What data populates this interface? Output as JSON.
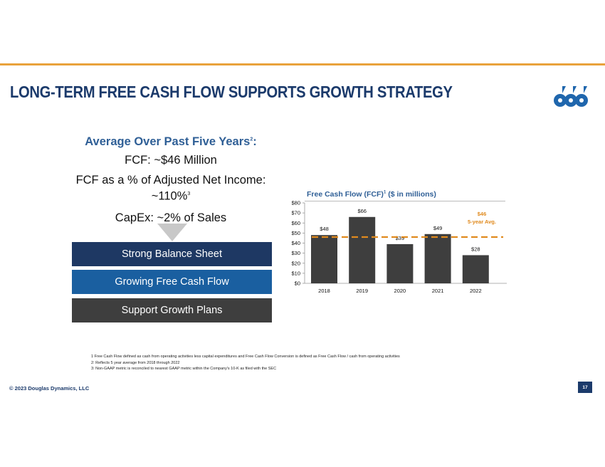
{
  "slide": {
    "title": "LONG-TERM FREE CASH FLOW SUPPORTS GROWTH STRATEGY",
    "accent_color": "#e9a23b",
    "brand_color": "#1b3a6b",
    "logo_icon": "douglas-dynamics-logo-icon"
  },
  "summary": {
    "heading": "Average Over Past Five Years",
    "heading_sup": "2",
    "heading_suffix": ":",
    "fcf": "FCF: ~$46 Million",
    "pct_label": "FCF as a % of Adjusted Net Income:",
    "pct_value": "~110%",
    "pct_sup": "3",
    "capex": "CapEx: ~2% of Sales"
  },
  "pillars": [
    {
      "label": "Strong Balance Sheet",
      "color": "#1e3863"
    },
    {
      "label": "Growing Free Cash Flow",
      "color": "#1a5fa0"
    },
    {
      "label": "Support Growth Plans",
      "color": "#3e3e3e"
    }
  ],
  "chart_title": {
    "main": "Free Cash Flow (FCF)",
    "sup": "1",
    "suffix": " ($ in millions)"
  },
  "chart_data": {
    "type": "bar",
    "categories": [
      "2018",
      "2019",
      "2020",
      "2021",
      "2022"
    ],
    "values": [
      48,
      66,
      39,
      49,
      28
    ],
    "data_labels": [
      "$48",
      "$66",
      "$39",
      "$49",
      "$28"
    ],
    "ylim": [
      0,
      80
    ],
    "y_ticks": [
      0,
      10,
      20,
      30,
      40,
      50,
      60,
      70,
      80
    ],
    "y_tick_labels": [
      "$0",
      "$10",
      "$20",
      "$30",
      "$40",
      "$50",
      "$60",
      "$70",
      "$80"
    ],
    "bar_color": "#3e3e3e",
    "reference_line": {
      "value": 46,
      "label_value": "$46",
      "label_text": "5-year Avg.",
      "color": "#e08a1e",
      "style": "dashed"
    },
    "grid": false,
    "legend": "none"
  },
  "footnotes": [
    "1 Free Cash Flow defined as cash from operating activities less capital expenditures and Free Cash Flow Conversion is defined as Free Cash Flow / cash from operating activities",
    "2: Reflects 5 year average from 2018 through 2022",
    "3: Non-GAAP metric is reconciled to nearest GAAP metric within the Company's 10-K as filed with the SEC"
  ],
  "footer": {
    "copyright": "© 2023 Douglas Dynamics, LLC",
    "page_number": "17"
  }
}
